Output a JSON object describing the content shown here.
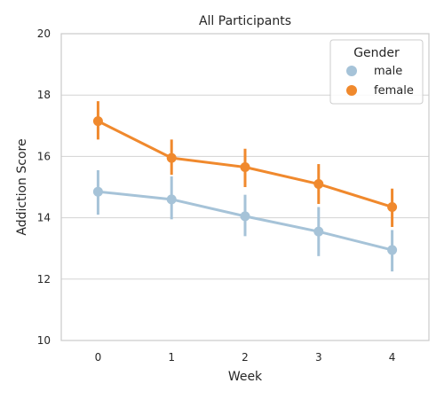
{
  "chart_data": {
    "type": "line",
    "title": "All Participants",
    "xlabel": "Week",
    "ylabel": "Addiction Score",
    "x": [
      0,
      1,
      2,
      3,
      4
    ],
    "xlim": [
      -0.5,
      4.5
    ],
    "ylim": [
      10,
      20
    ],
    "yticks": [
      10,
      12,
      14,
      16,
      18,
      20
    ],
    "grid": "horizontal",
    "legend": {
      "title": "Gender",
      "placement": "top-right"
    },
    "series": [
      {
        "name": "male",
        "color": "#a6c3d8",
        "values": [
          14.85,
          14.6,
          14.05,
          13.55,
          12.95
        ],
        "ci_low": [
          14.1,
          13.95,
          13.4,
          12.75,
          12.25
        ],
        "ci_high": [
          15.55,
          15.35,
          14.75,
          14.35,
          13.6
        ]
      },
      {
        "name": "female",
        "color": "#f0892d",
        "values": [
          17.15,
          15.95,
          15.65,
          15.1,
          14.35
        ],
        "ci_low": [
          16.55,
          15.4,
          15.0,
          14.45,
          13.7
        ],
        "ci_high": [
          17.8,
          16.55,
          16.25,
          15.75,
          14.95
        ]
      }
    ]
  }
}
